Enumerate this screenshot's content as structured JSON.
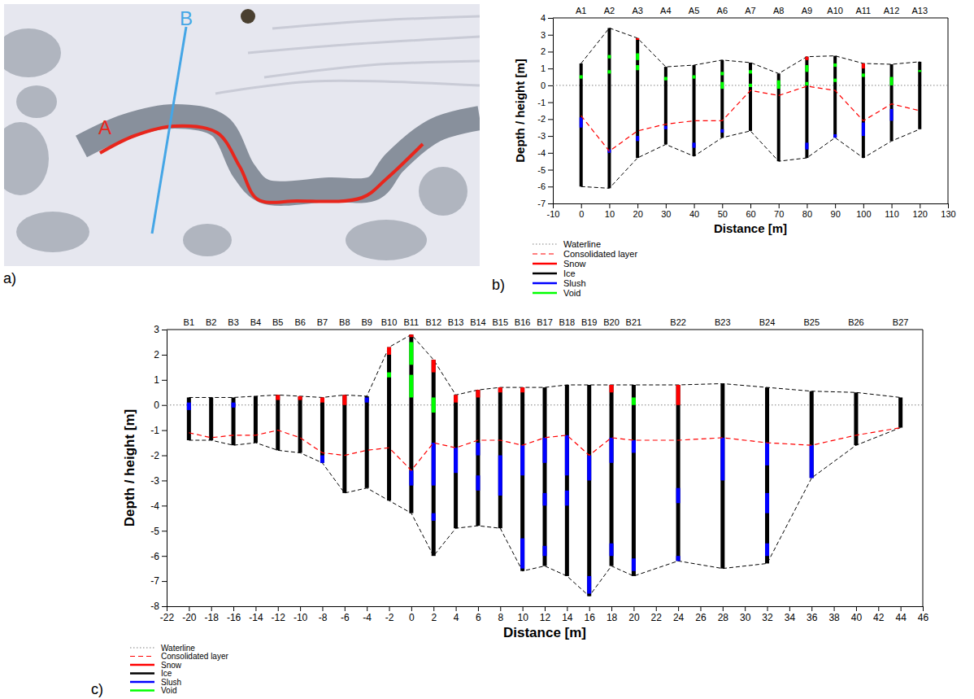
{
  "photo": {
    "panel_label": "a)",
    "lines": [
      {
        "label": "A",
        "color": "#e8261c"
      },
      {
        "label": "B",
        "color": "#45a6e6"
      }
    ]
  },
  "chart_data": [
    {
      "type": "profile",
      "panel_label": "b)",
      "x_label": "Distance [m]",
      "y_label": "Depth / height [m]",
      "xlim": [
        -10,
        130
      ],
      "xticks": [
        -10,
        0,
        10,
        20,
        30,
        40,
        50,
        60,
        70,
        80,
        90,
        100,
        110,
        120,
        130
      ],
      "ylim": [
        -7,
        4
      ],
      "yticks": [
        -7,
        -6,
        -5,
        -4,
        -3,
        -2,
        -1,
        0,
        1,
        2,
        3,
        4
      ],
      "legend": "bottom left",
      "lines": [
        {
          "name": "Waterline",
          "color": "#808080",
          "line_style": "dotted",
          "y": 0
        },
        {
          "name": "Consolidated layer",
          "color": "#ff0000",
          "line_style": "dashed",
          "values": [
            -1.8,
            -3.9,
            -2.7,
            -2.3,
            -2.1,
            -2.1,
            -0.3,
            -0.6,
            -0.05,
            -0.3,
            -2.1,
            -1.1,
            -1.5
          ]
        }
      ],
      "materials": [
        {
          "name": "Snow",
          "color": "#ff0000"
        },
        {
          "name": "Ice",
          "color": "#000000"
        },
        {
          "name": "Slush",
          "color": "#0000ff"
        },
        {
          "name": "Void",
          "color": "#00ff00"
        }
      ],
      "cores": {
        "column_material": "Ice",
        "labels": [
          "A1",
          "A2",
          "A3",
          "A4",
          "A5",
          "A6",
          "A7",
          "A8",
          "A9",
          "A10",
          "A11",
          "A12",
          "A13"
        ],
        "x": [
          0,
          10,
          20,
          30,
          40,
          50,
          60,
          70,
          80,
          90,
          100,
          110,
          120
        ],
        "surface": [
          1.3,
          3.4,
          2.8,
          1.1,
          1.2,
          1.5,
          1.35,
          0.7,
          1.7,
          1.75,
          1.3,
          1.25,
          1.4
        ],
        "base": [
          -6.0,
          -6.1,
          -4.3,
          -3.5,
          -4.2,
          -3.1,
          -2.7,
          -4.5,
          -4.3,
          -3.1,
          -4.3,
          -3.3,
          -2.6
        ],
        "layers": [
          [
            {
              "material": "Void",
              "from": 0.6,
              "to": 0.4
            },
            {
              "material": "Slush",
              "from": -1.9,
              "to": -2.5
            }
          ],
          [
            {
              "material": "Void",
              "from": 1.8,
              "to": 1.6
            },
            {
              "material": "Void",
              "from": 0.9,
              "to": 0.7
            },
            {
              "material": "Slush",
              "from": -3.8,
              "to": -4.0
            }
          ],
          [
            {
              "material": "Snow",
              "from": 2.8,
              "to": 2.7
            },
            {
              "material": "Void",
              "from": 1.9,
              "to": 1.5
            },
            {
              "material": "Void",
              "from": 1.2,
              "to": 0.9
            },
            {
              "material": "Slush",
              "from": -3.0,
              "to": -3.3
            }
          ],
          [
            {
              "material": "Void",
              "from": 0.5,
              "to": 0.3
            },
            {
              "material": "Slush",
              "from": -2.4,
              "to": -2.6
            }
          ],
          [
            {
              "material": "Void",
              "from": 0.6,
              "to": 0.4
            },
            {
              "material": "Slush",
              "from": -3.4,
              "to": -3.7
            }
          ],
          [
            {
              "material": "Void",
              "from": 0.8,
              "to": 0.6
            },
            {
              "material": "Void",
              "from": 0.2,
              "to": -0.2
            },
            {
              "material": "Slush",
              "from": -2.6,
              "to": -2.8
            }
          ],
          [
            {
              "material": "Void",
              "from": 0.9,
              "to": 0.7
            },
            {
              "material": "Void",
              "from": 0.1,
              "to": -0.1
            }
          ],
          [
            {
              "material": "Void",
              "from": 0.3,
              "to": -0.2
            }
          ],
          [
            {
              "material": "Snow",
              "from": 1.7,
              "to": 1.5
            },
            {
              "material": "Void",
              "from": 1.2,
              "to": 0.8
            },
            {
              "material": "Void",
              "from": 0.2,
              "to": 0.0
            },
            {
              "material": "Slush",
              "from": -3.4,
              "to": -3.8
            }
          ],
          [
            {
              "material": "Void",
              "from": 1.3,
              "to": 1.1
            },
            {
              "material": "Void",
              "from": 0.4,
              "to": 0.2
            },
            {
              "material": "Slush",
              "from": -2.9,
              "to": -3.1
            }
          ],
          [
            {
              "material": "Snow",
              "from": 1.3,
              "to": 1.0
            },
            {
              "material": "Void",
              "from": 0.7,
              "to": 0.5
            },
            {
              "material": "Slush",
              "from": -2.2,
              "to": -3.0
            }
          ],
          [
            {
              "material": "Void",
              "from": 0.5,
              "to": 0.0
            },
            {
              "material": "Slush",
              "from": -1.4,
              "to": -2.1
            }
          ],
          [
            {
              "material": "Void",
              "from": 0.9,
              "to": 0.8
            }
          ]
        ]
      }
    },
    {
      "type": "profile",
      "panel_label": "c)",
      "x_label": "Distance [m]",
      "y_label": "Depth / height [m]",
      "xlim": [
        -22,
        46
      ],
      "xticks": [
        -22,
        -20,
        -18,
        -16,
        -14,
        -12,
        -10,
        -8,
        -6,
        -4,
        -2,
        0,
        2,
        4,
        6,
        8,
        10,
        12,
        14,
        16,
        18,
        20,
        22,
        24,
        26,
        28,
        30,
        32,
        34,
        36,
        38,
        40,
        42,
        44,
        46
      ],
      "ylim": [
        -8,
        3
      ],
      "yticks": [
        -8,
        -7,
        -6,
        -5,
        -4,
        -3,
        -2,
        -1,
        0,
        1,
        2,
        3
      ],
      "legend": "bottom left",
      "lines": [
        {
          "name": "Waterline",
          "color": "#808080",
          "line_style": "dotted",
          "y": 0
        },
        {
          "name": "Consolidated layer",
          "color": "#ff0000",
          "line_style": "dashed",
          "values": [
            -1.1,
            -1.3,
            -1.2,
            -1.2,
            -1.0,
            -1.3,
            -1.9,
            -2.0,
            -1.8,
            -1.7,
            -2.6,
            -1.5,
            -1.7,
            -1.4,
            -1.4,
            -1.6,
            -1.3,
            -1.2,
            -2.0,
            -1.3,
            -1.4,
            -1.4,
            -1.3,
            -1.5,
            -1.6,
            -1.2,
            -0.9
          ]
        }
      ],
      "materials": [
        {
          "name": "Snow",
          "color": "#ff0000"
        },
        {
          "name": "Ice",
          "color": "#000000"
        },
        {
          "name": "Slush",
          "color": "#0000ff"
        },
        {
          "name": "Void",
          "color": "#00ff00"
        }
      ],
      "cores": {
        "column_material": "Ice",
        "labels": [
          "B1",
          "B2",
          "B3",
          "B4",
          "B5",
          "B6",
          "B7",
          "B8",
          "B9",
          "B10",
          "B11",
          "B12",
          "B13",
          "B14",
          "B15",
          "B16",
          "B17",
          "B18",
          "B19",
          "B20",
          "B21",
          "B22",
          "B23",
          "B24",
          "B25",
          "B26",
          "B27"
        ],
        "x": [
          -20,
          -18,
          -16,
          -14,
          -12,
          -10,
          -8,
          -6,
          -4,
          -2,
          0,
          2,
          4,
          6,
          8,
          10,
          12,
          14,
          16,
          18,
          20,
          24,
          28,
          32,
          36,
          40,
          44
        ],
        "surface": [
          0.3,
          0.3,
          0.3,
          0.35,
          0.4,
          0.35,
          0.3,
          0.4,
          0.35,
          2.3,
          2.8,
          1.8,
          0.4,
          0.6,
          0.7,
          0.7,
          0.7,
          0.8,
          0.8,
          0.8,
          0.8,
          0.8,
          0.85,
          0.7,
          0.55,
          0.5,
          0.3
        ],
        "base": [
          -1.4,
          -1.4,
          -1.6,
          -1.5,
          -1.8,
          -1.9,
          -2.3,
          -3.5,
          -3.3,
          -3.8,
          -4.3,
          -6.0,
          -4.9,
          -4.8,
          -4.9,
          -6.6,
          -6.4,
          -6.8,
          -7.6,
          -6.4,
          -6.8,
          -6.2,
          -6.5,
          -6.3,
          -2.9,
          -1.6,
          -0.9
        ],
        "layers": [
          [
            {
              "material": "Slush",
              "from": 0.1,
              "to": -0.2
            }
          ],
          [],
          [
            {
              "material": "Slush",
              "from": 0.1,
              "to": -0.1
            }
          ],
          [],
          [
            {
              "material": "Snow",
              "from": 0.4,
              "to": 0.2
            }
          ],
          [
            {
              "material": "Snow",
              "from": 0.35,
              "to": 0.2
            }
          ],
          [
            {
              "material": "Snow",
              "from": 0.3,
              "to": 0.1
            },
            {
              "material": "Slush",
              "from": -2.0,
              "to": -2.3
            }
          ],
          [
            {
              "material": "Snow",
              "from": 0.4,
              "to": 0.0
            }
          ],
          [
            {
              "material": "Slush",
              "from": 0.3,
              "to": 0.1
            }
          ],
          [
            {
              "material": "Snow",
              "from": 2.3,
              "to": 2.0
            },
            {
              "material": "Void",
              "from": 1.3,
              "to": 1.1
            }
          ],
          [
            {
              "material": "Snow",
              "from": 2.8,
              "to": 2.7
            },
            {
              "material": "Void",
              "from": 2.5,
              "to": 1.6
            },
            {
              "material": "Void",
              "from": 1.2,
              "to": 0.3
            },
            {
              "material": "Slush",
              "from": -2.6,
              "to": -3.2
            }
          ],
          [
            {
              "material": "Snow",
              "from": 1.8,
              "to": 1.3
            },
            {
              "material": "Void",
              "from": 0.3,
              "to": -0.3
            },
            {
              "material": "Slush",
              "from": -1.5,
              "to": -3.2
            },
            {
              "material": "Slush",
              "from": -4.3,
              "to": -4.6
            }
          ],
          [
            {
              "material": "Snow",
              "from": 0.4,
              "to": 0.1
            },
            {
              "material": "Slush",
              "from": -1.7,
              "to": -2.7
            }
          ],
          [
            {
              "material": "Snow",
              "from": 0.6,
              "to": 0.3
            },
            {
              "material": "Slush",
              "from": -1.5,
              "to": -2.0
            },
            {
              "material": "Slush",
              "from": -2.8,
              "to": -3.4
            }
          ],
          [
            {
              "material": "Snow",
              "from": 0.7,
              "to": 0.5
            },
            {
              "material": "Slush",
              "from": -2.0,
              "to": -3.6
            }
          ],
          [
            {
              "material": "Snow",
              "from": 0.7,
              "to": 0.5
            },
            {
              "material": "Slush",
              "from": -1.6,
              "to": -2.8
            },
            {
              "material": "Slush",
              "from": -5.3,
              "to": -6.5
            }
          ],
          [
            {
              "material": "Slush",
              "from": -1.3,
              "to": -2.3
            },
            {
              "material": "Slush",
              "from": -3.5,
              "to": -4.0
            },
            {
              "material": "Slush",
              "from": -5.6,
              "to": -6.0
            }
          ],
          [
            {
              "material": "Slush",
              "from": -1.2,
              "to": -2.8
            },
            {
              "material": "Slush",
              "from": -3.4,
              "to": -4.0
            }
          ],
          [
            {
              "material": "Slush",
              "from": -2.0,
              "to": -3.0
            },
            {
              "material": "Slush",
              "from": -6.8,
              "to": -7.5
            }
          ],
          [
            {
              "material": "Snow",
              "from": 0.8,
              "to": 0.5
            },
            {
              "material": "Slush",
              "from": -1.3,
              "to": -2.3
            },
            {
              "material": "Slush",
              "from": -5.5,
              "to": -6.0
            }
          ],
          [
            {
              "material": "Void",
              "from": 0.3,
              "to": 0.0
            },
            {
              "material": "Slush",
              "from": -1.4,
              "to": -1.9
            },
            {
              "material": "Slush",
              "from": -6.1,
              "to": -6.6
            }
          ],
          [
            {
              "material": "Snow",
              "from": 0.8,
              "to": 0.0
            },
            {
              "material": "Slush",
              "from": -3.3,
              "to": -3.9
            },
            {
              "material": "Slush",
              "from": -6.0,
              "to": -6.2
            }
          ],
          [
            {
              "material": "Slush",
              "from": -1.3,
              "to": -3.0
            }
          ],
          [
            {
              "material": "Slush",
              "from": -1.5,
              "to": -2.4
            },
            {
              "material": "Slush",
              "from": -3.5,
              "to": -4.3
            },
            {
              "material": "Slush",
              "from": -5.5,
              "to": -6.0
            }
          ],
          [
            {
              "material": "Slush",
              "from": -1.6,
              "to": -2.9
            }
          ],
          [],
          []
        ]
      }
    }
  ]
}
